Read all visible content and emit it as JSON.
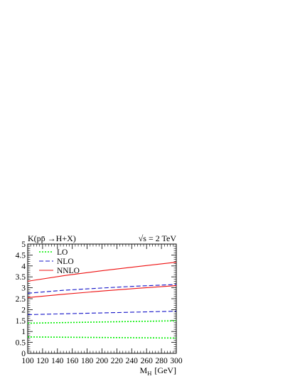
{
  "chart_data": {
    "type": "line",
    "title": "K(pp̄ →H+X)",
    "annotation": "√s = 2 TeV",
    "xlabel": "M",
    "xlabel_sub": "H",
    "xlabel_unit": "[GeV]",
    "ylabel": "",
    "xlim": [
      100,
      300
    ],
    "ylim": [
      0,
      5
    ],
    "x_ticks": [
      100,
      120,
      140,
      160,
      180,
      200,
      220,
      240,
      260,
      280,
      300
    ],
    "y_ticks": [
      0,
      0.5,
      1,
      1.5,
      2,
      2.5,
      3,
      3.5,
      4,
      4.5,
      5
    ],
    "y_tick_labels": [
      "0",
      "0.5",
      "1",
      "1.5",
      "2",
      "2.5",
      "3",
      "3.5",
      "4",
      "4.5",
      "5"
    ],
    "grid": false,
    "legend_position": "top-left",
    "legend": [
      {
        "label": "LO",
        "color": "#00ee00",
        "style": "dotted"
      },
      {
        "label": "NLO",
        "color": "#1515c8",
        "style": "dashed"
      },
      {
        "label": "NNLO",
        "color": "#ee1010",
        "style": "solid"
      }
    ],
    "series": [
      {
        "group": "LO",
        "color": "#00ee00",
        "style": "dotted",
        "x": [
          100,
          300
        ],
        "y": [
          1.38,
          1.49
        ]
      },
      {
        "group": "LO",
        "color": "#00ee00",
        "style": "dotted",
        "x": [
          100,
          300
        ],
        "y": [
          0.75,
          0.7
        ]
      },
      {
        "group": "NLO",
        "color": "#1515c8",
        "style": "dashed",
        "x": [
          100,
          150,
          200,
          250,
          300
        ],
        "y": [
          2.75,
          2.89,
          2.99,
          3.08,
          3.15
        ]
      },
      {
        "group": "NLO",
        "color": "#1515c8",
        "style": "dashed",
        "x": [
          100,
          150,
          200,
          250,
          300
        ],
        "y": [
          1.77,
          1.81,
          1.85,
          1.89,
          1.93
        ]
      },
      {
        "group": "NNLO",
        "color": "#ee1010",
        "style": "solid",
        "x": [
          100,
          150,
          200,
          250,
          300
        ],
        "y": [
          3.3,
          3.56,
          3.78,
          3.98,
          4.17
        ]
      },
      {
        "group": "NNLO",
        "color": "#ee1010",
        "style": "solid",
        "x": [
          100,
          150,
          200,
          250,
          300
        ],
        "y": [
          2.55,
          2.71,
          2.85,
          2.98,
          3.1
        ]
      }
    ]
  }
}
